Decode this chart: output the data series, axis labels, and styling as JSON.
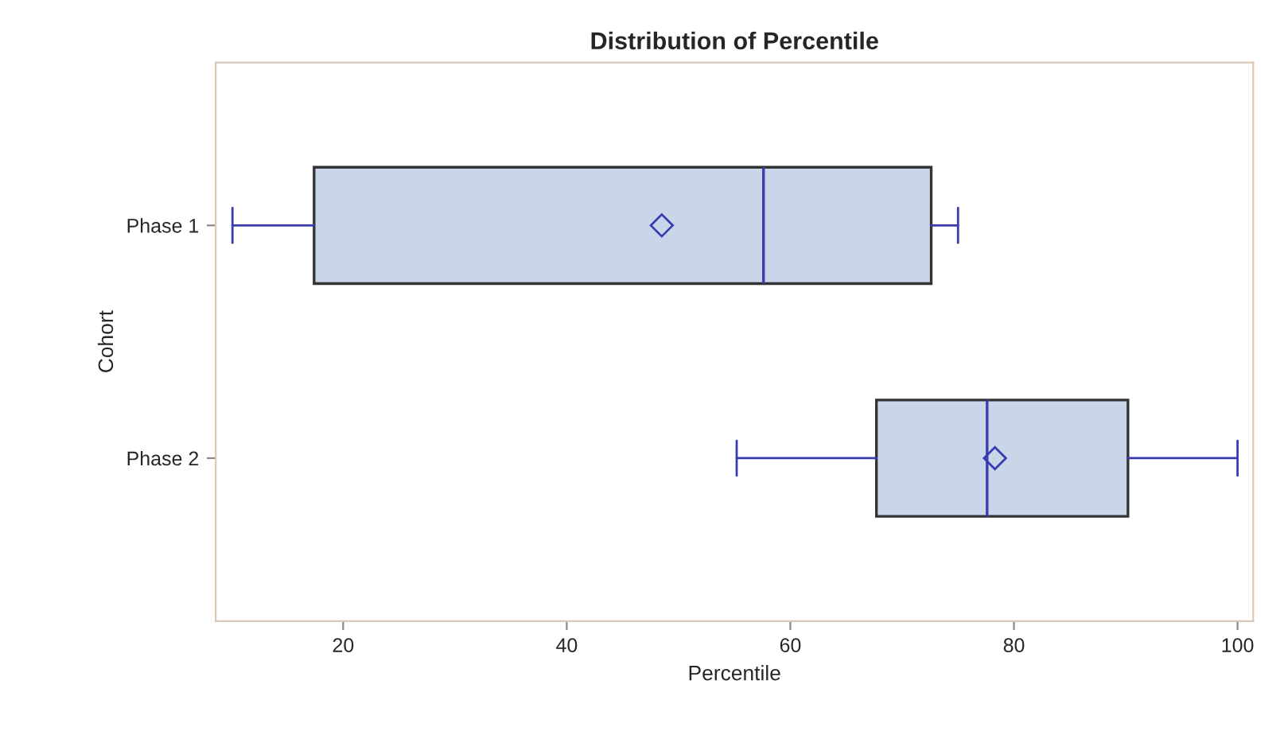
{
  "chart_data": {
    "type": "box",
    "title": "Distribution of Percentile",
    "xlabel": "Percentile",
    "ylabel": "Cohort",
    "orientation": "horizontal",
    "categories": [
      "Phase 1",
      "Phase 2"
    ],
    "color": "#c9d5e8",
    "boxes": [
      {
        "low": 10.1,
        "q1": 17.4,
        "median": 57.6,
        "q3": 72.6,
        "high": 75.0,
        "mean": 48.5
      },
      {
        "low": 55.2,
        "q1": 67.7,
        "median": 77.6,
        "q3": 90.2,
        "high": 100,
        "mean": 78.3
      }
    ],
    "marker": "diamond",
    "xlim": [
      8.6,
      101.4
    ],
    "xticks": [
      20,
      40,
      60,
      80,
      100
    ],
    "grid": false
  }
}
